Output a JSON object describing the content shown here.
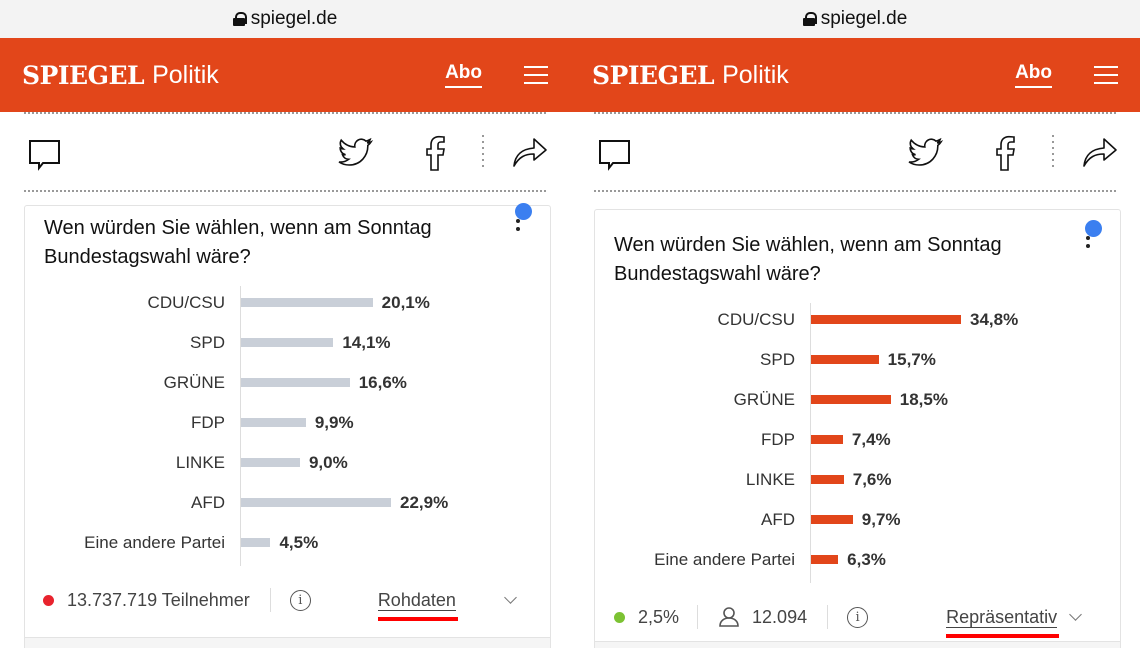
{
  "panels": [
    {
      "url": "spiegel.de",
      "brand": "SPIEGEL",
      "section": "Politik",
      "abo": "Abo",
      "question": "Wen würden Sie wählen, wenn am Sonntag Bundestagswahl wäre?",
      "bar_color": "#c9cfd8",
      "scale_max": 22.9,
      "rows": [
        {
          "party": "CDU/CSU",
          "value": 20.1,
          "label": "20,1%"
        },
        {
          "party": "SPD",
          "value": 14.1,
          "label": "14,1%"
        },
        {
          "party": "GRÜNE",
          "value": 16.6,
          "label": "16,6%"
        },
        {
          "party": "FDP",
          "value": 9.9,
          "label": "9,9%"
        },
        {
          "party": "LINKE",
          "value": 9.0,
          "label": "9,0%"
        },
        {
          "party": "AFD",
          "value": 22.9,
          "label": "22,9%"
        },
        {
          "party": "Eine andere Partei",
          "value": 4.5,
          "label": "4,5%"
        }
      ],
      "footer": {
        "status_color": "#e8232d",
        "participants": "13.737.719 Teilnehmer",
        "mode": "Rohdaten"
      }
    },
    {
      "url": "spiegel.de",
      "brand": "SPIEGEL",
      "section": "Politik",
      "abo": "Abo",
      "question": "Wen würden Sie wählen, wenn am Sonntag Bundestagswahl wäre?",
      "bar_color": "#e2461a",
      "scale_max": 34.8,
      "rows": [
        {
          "party": "CDU/CSU",
          "value": 34.8,
          "label": "34,8%"
        },
        {
          "party": "SPD",
          "value": 15.7,
          "label": "15,7%"
        },
        {
          "party": "GRÜNE",
          "value": 18.5,
          "label": "18,5%"
        },
        {
          "party": "FDP",
          "value": 7.4,
          "label": "7,4%"
        },
        {
          "party": "LINKE",
          "value": 7.6,
          "label": "7,6%"
        },
        {
          "party": "AFD",
          "value": 9.7,
          "label": "9,7%"
        },
        {
          "party": "Eine andere Partei",
          "value": 6.3,
          "label": "6,3%"
        }
      ],
      "footer": {
        "status_color": "#7cc233",
        "error_margin": "2,5%",
        "participants": "12.094",
        "mode": "Repräsentativ"
      }
    }
  ],
  "colors": {
    "brand": "#e2461a",
    "annotation_underline": "#ff0000"
  }
}
